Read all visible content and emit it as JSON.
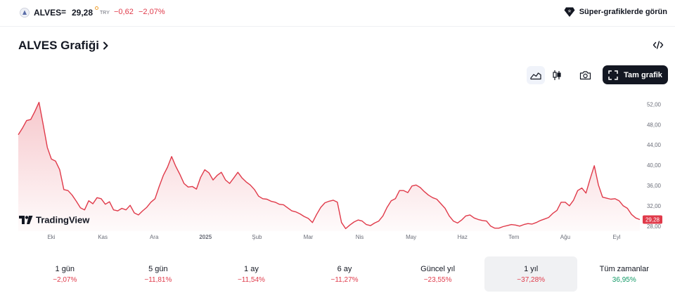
{
  "ticker": {
    "symbol": "ALVES",
    "equals": "=",
    "price": "29,28",
    "currency": "TRY",
    "change": "−0,62",
    "change_percent": "−2,07%",
    "down_color": "#e03a4a",
    "up_color": "#119966"
  },
  "super_charts": {
    "label": "Süper-grafiklerde görün",
    "icon": "diamond-badge-icon"
  },
  "chart_title": "ALVES Grafiği",
  "toolbar": {
    "buttons": [
      "area-chart-icon",
      "candles-icon",
      "camera-icon"
    ],
    "fullscreen_label": "Tam grafik"
  },
  "chart_data": {
    "type": "area",
    "line_color": "#e03a4a",
    "y_ticks": [
      "52,00",
      "48,00",
      "44,00",
      "40,00",
      "36,00",
      "32,00",
      "28,00"
    ],
    "ylim": [
      27,
      54
    ],
    "last_price_label": "29,28",
    "x_ticks": [
      "Eki",
      "Kas",
      "Ara",
      "2025",
      "Şub",
      "Mar",
      "Nis",
      "May",
      "Haz",
      "Tem",
      "Ağu",
      "Eyl"
    ],
    "watermark": "TradingView",
    "grid": false,
    "x": [
      0,
      1,
      2,
      3,
      4,
      5,
      6,
      7,
      8,
      9,
      10,
      11,
      12,
      13,
      14,
      15,
      16,
      17,
      18,
      19,
      20,
      21,
      22,
      23,
      24,
      25,
      26,
      27,
      28,
      29,
      30,
      31,
      32,
      33,
      34,
      35,
      36,
      37,
      38,
      39,
      40,
      41,
      42,
      43,
      44,
      45,
      46,
      47,
      48,
      49,
      50,
      51,
      52,
      53,
      54,
      55,
      56,
      57,
      58,
      59,
      60,
      61,
      62,
      63,
      64,
      65,
      66,
      67,
      68,
      69,
      70,
      71,
      72,
      73,
      74,
      75,
      76,
      77,
      78,
      79,
      80,
      81,
      82,
      83,
      84,
      85,
      86,
      87,
      88,
      89,
      90,
      91,
      92,
      93,
      94,
      95,
      96,
      97,
      98,
      99,
      100,
      101,
      102,
      103,
      104,
      105,
      106,
      107,
      108,
      109,
      110,
      111,
      112,
      113,
      114,
      115,
      116,
      117,
      118,
      119,
      120,
      121,
      122,
      123,
      124,
      125,
      126,
      127,
      128,
      129,
      130,
      131,
      132,
      133,
      134,
      135,
      136,
      137,
      138,
      139,
      140,
      141,
      142,
      143,
      144,
      145,
      146,
      147,
      148,
      149,
      150
    ],
    "values": [
      46.0,
      47.3,
      48.8,
      49.0,
      50.6,
      52.4,
      48.0,
      43.5,
      41.2,
      40.8,
      39.1,
      35.2,
      35.0,
      34.1,
      32.9,
      31.6,
      31.2,
      33.0,
      32.4,
      33.6,
      33.4,
      32.3,
      32.8,
      31.2,
      31.0,
      31.5,
      31.2,
      32.1,
      30.6,
      30.2,
      31.0,
      31.7,
      32.7,
      33.4,
      35.8,
      38.0,
      39.6,
      41.7,
      39.8,
      38.2,
      36.4,
      35.7,
      35.8,
      35.3,
      37.6,
      39.1,
      38.5,
      37.1,
      38.0,
      38.6,
      37.1,
      36.4,
      37.5,
      38.6,
      37.5,
      36.7,
      36.1,
      35.2,
      33.9,
      33.4,
      33.3,
      32.9,
      32.7,
      32.3,
      32.2,
      31.6,
      31.0,
      30.8,
      30.4,
      29.9,
      29.5,
      28.7,
      30.3,
      31.7,
      32.6,
      32.9,
      33.1,
      32.7,
      28.7,
      27.5,
      28.2,
      28.8,
      29.2,
      29.0,
      28.3,
      28.1,
      28.6,
      29.0,
      30.0,
      31.7,
      33.0,
      33.4,
      35.0,
      35.0,
      34.6,
      35.9,
      36.1,
      35.6,
      34.8,
      34.1,
      33.6,
      33.3,
      32.4,
      31.5,
      30.0,
      29.0,
      28.6,
      29.2,
      30.0,
      30.2,
      29.6,
      29.3,
      29.1,
      29.0,
      28.0,
      27.6,
      27.6,
      27.9,
      28.1,
      28.3,
      28.2,
      28.0,
      28.3,
      28.5,
      28.4,
      28.7,
      29.1,
      29.4,
      29.7,
      30.5,
      31.1,
      32.7,
      32.7,
      32.0,
      33.1,
      35.0,
      35.5,
      34.5,
      37.3,
      39.9,
      36.1,
      33.7,
      33.5,
      33.3,
      33.4,
      33.0,
      32.0,
      31.5,
      30.3,
      29.6,
      29.28
    ]
  },
  "periods": [
    {
      "label": "1 gün",
      "value": "−2,07%",
      "trend": "neg"
    },
    {
      "label": "5 gün",
      "value": "−11,81%",
      "trend": "neg"
    },
    {
      "label": "1 ay",
      "value": "−11,54%",
      "trend": "neg"
    },
    {
      "label": "6 ay",
      "value": "−11,27%",
      "trend": "neg"
    },
    {
      "label": "Güncel yıl",
      "value": "−23,55%",
      "trend": "neg"
    },
    {
      "label": "1 yıl",
      "value": "−37,28%",
      "trend": "neg",
      "active": true
    },
    {
      "label": "Tüm zamanlar",
      "value": "36,95%",
      "trend": "pos"
    }
  ]
}
